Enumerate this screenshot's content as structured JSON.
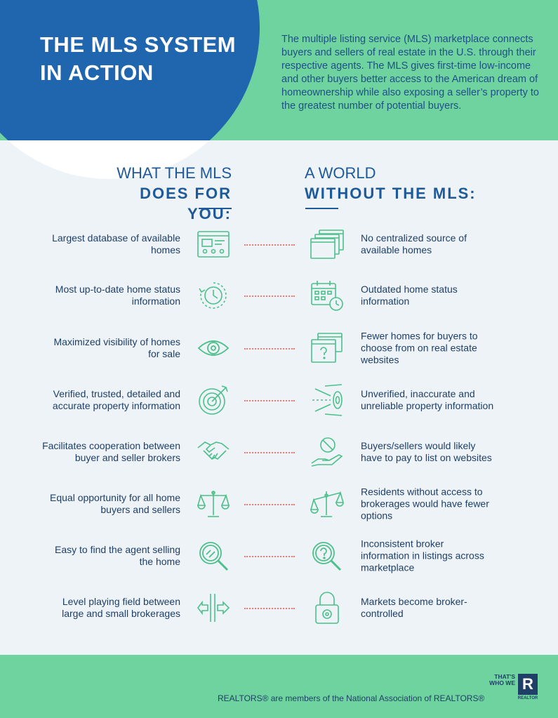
{
  "title": "THE MLS SYSTEM IN ACTION",
  "intro": "The multiple listing service (MLS) marketplace connects buyers and sellers of real estate in the U.S. through their respective agents. The MLS gives first-time low-income and other buyers better access to the American dream of homeownership while also exposing a seller’s property to the greatest number of potential buyers.",
  "left_heading": {
    "line1": "WHAT THE MLS",
    "line2": "DOES FOR YOU:"
  },
  "right_heading": {
    "line1": "A WORLD",
    "line2": "WITHOUT THE MLS:"
  },
  "rows": [
    {
      "left": "Largest database of available homes",
      "right": "No centralized source of available homes",
      "left_icon": "listing-screen-icon",
      "right_icon": "scattered-windows-icon"
    },
    {
      "left": "Most up-to-date home status information",
      "right": "Outdated home status information",
      "left_icon": "refresh-clock-icon",
      "right_icon": "calendar-clock-icon"
    },
    {
      "left": "Maximized visibility of homes for sale",
      "right": "Fewer homes for buyers to choose from on real estate websites",
      "left_icon": "eye-icon",
      "right_icon": "window-question-icon"
    },
    {
      "left": "Verified, trusted, detailed and accurate property information",
      "right": "Unverified, inaccurate and unreliable property information",
      "left_icon": "target-bullseye-icon",
      "right_icon": "missed-target-icon"
    },
    {
      "left": "Facilitates cooperation between buyer and seller brokers",
      "right": "Buyers/sellers would likely have to pay to list on websites",
      "left_icon": "handshake-icon",
      "right_icon": "hand-coin-icon"
    },
    {
      "left": "Equal opportunity for all home buyers and sellers",
      "right": "Residents without access to brokerages would have fewer options",
      "left_icon": "balanced-scale-icon",
      "right_icon": "unbalanced-scale-icon"
    },
    {
      "left": "Easy to find the agent selling the home",
      "right": "Inconsistent broker information in listings across marketplace",
      "left_icon": "magnifier-icon",
      "right_icon": "magnifier-question-icon"
    },
    {
      "left": "Level playing field between large and small brokerages",
      "right": "Markets become broker-controlled",
      "left_icon": "divider-arrows-icon",
      "right_icon": "padlock-icon"
    }
  ],
  "footer": {
    "text": "REALTORS® are members of the National Association of REALTORS®",
    "logo_text": "THAT'S WHO WE",
    "logo_letter": "R",
    "logo_sub": "REALTOR"
  },
  "colors": {
    "green": "#6fd3a0",
    "blue": "#1f66ae",
    "navy": "#1e3f66",
    "dots": "#f07a6f",
    "bg": "#eef3f7"
  }
}
